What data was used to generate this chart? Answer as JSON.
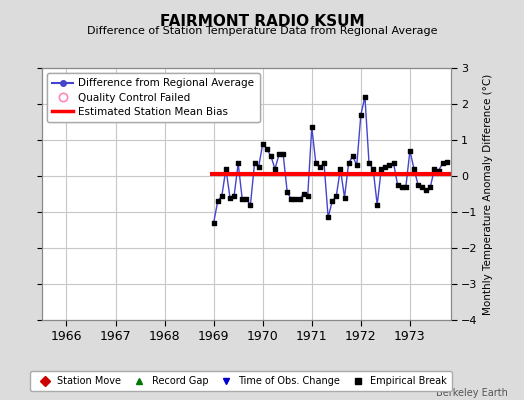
{
  "title": "FAIRMONT RADIO KSUM",
  "subtitle": "Difference of Station Temperature Data from Regional Average",
  "ylabel": "Monthly Temperature Anomaly Difference (°C)",
  "xlabel_ticks": [
    1966,
    1967,
    1968,
    1969,
    1970,
    1971,
    1972,
    1973
  ],
  "xlim": [
    1965.5,
    1973.83
  ],
  "ylim": [
    -4,
    3
  ],
  "yticks": [
    -4,
    -3,
    -2,
    -1,
    0,
    1,
    2,
    3
  ],
  "background_color": "#dcdcdc",
  "plot_bg_color": "#ffffff",
  "line_color": "#4444cc",
  "marker_color": "#000000",
  "bias_color": "#ff0000",
  "bias_value": 0.05,
  "bias_start": 1968.92,
  "bias_end": 1973.83,
  "data_x": [
    1969.0,
    1969.083,
    1969.167,
    1969.25,
    1969.333,
    1969.417,
    1969.5,
    1969.583,
    1969.667,
    1969.75,
    1969.833,
    1969.917,
    1970.0,
    1970.083,
    1970.167,
    1970.25,
    1970.333,
    1970.417,
    1970.5,
    1970.583,
    1970.667,
    1970.75,
    1970.833,
    1970.917,
    1971.0,
    1971.083,
    1971.167,
    1971.25,
    1971.333,
    1971.417,
    1971.5,
    1971.583,
    1971.667,
    1971.75,
    1971.833,
    1971.917,
    1972.0,
    1972.083,
    1972.167,
    1972.25,
    1972.333,
    1972.417,
    1972.5,
    1972.583,
    1972.667,
    1972.75,
    1972.833,
    1972.917,
    1973.0,
    1973.083,
    1973.167,
    1973.25,
    1973.333,
    1973.417,
    1973.5,
    1973.583,
    1973.667,
    1973.75
  ],
  "data_y": [
    -1.3,
    -0.7,
    -0.55,
    0.2,
    -0.6,
    -0.55,
    0.35,
    -0.65,
    -0.65,
    -0.8,
    0.35,
    0.25,
    0.9,
    0.75,
    0.55,
    0.2,
    0.6,
    0.6,
    -0.45,
    -0.65,
    -0.65,
    -0.65,
    -0.5,
    -0.55,
    1.35,
    0.35,
    0.25,
    0.35,
    -1.15,
    -0.7,
    -0.55,
    0.2,
    -0.6,
    0.35,
    0.55,
    0.3,
    1.7,
    2.2,
    0.35,
    0.2,
    -0.8,
    0.2,
    0.25,
    0.3,
    0.35,
    -0.25,
    -0.3,
    -0.3,
    0.7,
    0.2,
    -0.25,
    -0.3,
    -0.4,
    -0.3,
    0.2,
    0.15,
    0.35,
    0.4
  ],
  "grid_color": "#c8c8c8",
  "footer_text": "Berkeley Earth",
  "legend1_label": "Difference from Regional Average",
  "legend2_label": "Quality Control Failed",
  "legend3_label": "Estimated Station Mean Bias",
  "bottom_legend": [
    "Station Move",
    "Record Gap",
    "Time of Obs. Change",
    "Empirical Break"
  ],
  "bottom_legend_colors": [
    "#cc0000",
    "#007700",
    "#0000cc",
    "#000000"
  ],
  "bottom_legend_markers": [
    "D",
    "^",
    "v",
    "s"
  ]
}
